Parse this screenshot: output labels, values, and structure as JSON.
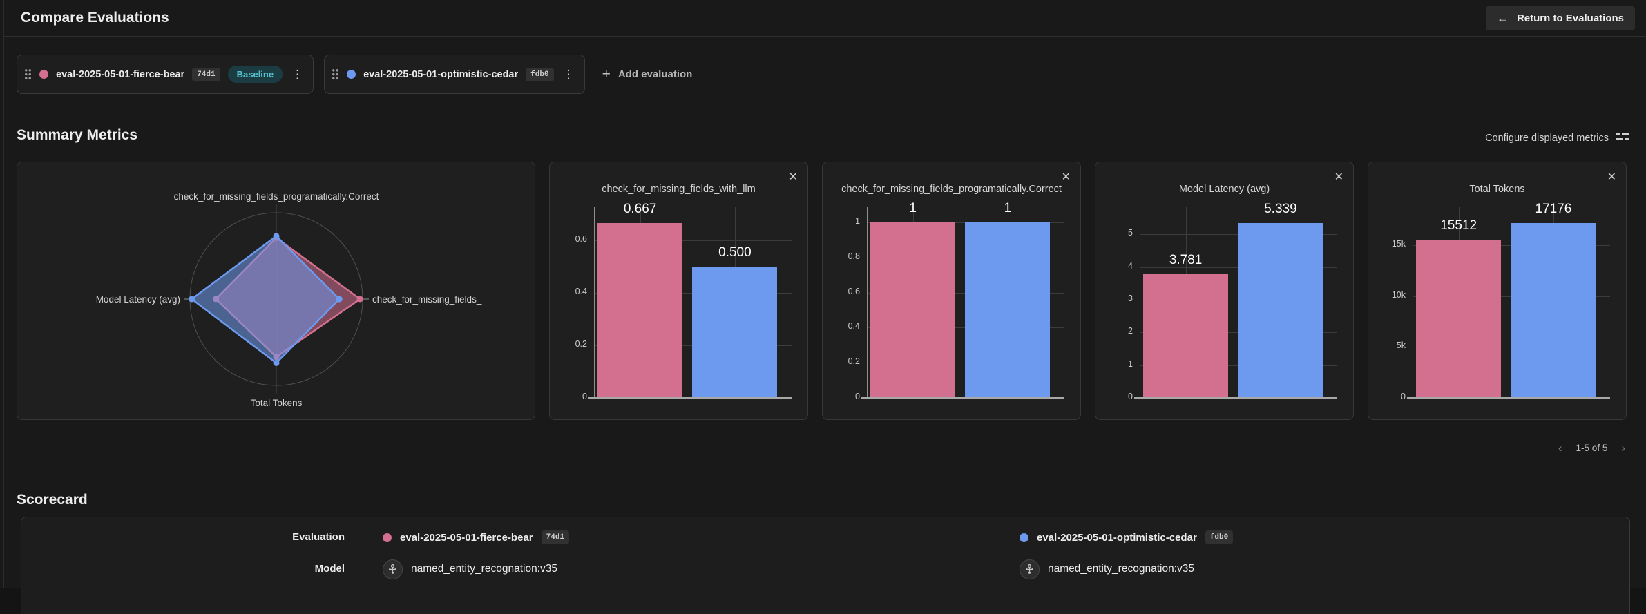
{
  "header": {
    "title": "Compare Evaluations",
    "return_button_label": "Return to Evaluations"
  },
  "evaluations": [
    {
      "name": "eval-2025-05-01-fierce-bear",
      "hash": "74d1",
      "baseline_label": "Baseline",
      "color": "#d4708f"
    },
    {
      "name": "eval-2025-05-01-optimistic-cedar",
      "hash": "fdb0",
      "color": "#6d9aee"
    }
  ],
  "add_evaluation_label": "Add evaluation",
  "summary": {
    "title": "Summary Metrics",
    "configure_label": "Configure displayed metrics",
    "pagination": "1-5 of 5"
  },
  "scorecard": {
    "title": "Scorecard",
    "row_labels": {
      "evaluation": "Evaluation",
      "model": "Model"
    },
    "columns": [
      {
        "evaluation": "eval-2025-05-01-fierce-bear",
        "hash": "74d1",
        "model": "named_entity_recognation:v35",
        "color": "#d4708f"
      },
      {
        "evaluation": "eval-2025-05-01-optimistic-cedar",
        "hash": "fdb0",
        "model": "named_entity_recognation:v35",
        "color": "#6d9aee"
      }
    ]
  },
  "icons": {
    "back_arrow": "←",
    "plus": "+",
    "kebab": "⋮",
    "close": "✕",
    "chevron_left": "‹",
    "chevron_right": "›"
  },
  "colors": {
    "pink_series": "#d4708f",
    "blue_series": "#6d9aee",
    "baseline_badge_bg": "#1a3c42",
    "baseline_badge_text": "#58c5d2",
    "card_bg": "#1f1f1f",
    "page_bg": "#191919",
    "gridline": "#3c3c3c",
    "axis": "#a8a8a8"
  },
  "chart_data": [
    {
      "type": "radar",
      "axes": [
        "check_for_missing_fields_programatically.Correct",
        "check_for_missing_fields_",
        "Total Tokens",
        "Model Latency (avg)"
      ],
      "axis_order": [
        "top",
        "right",
        "bottom",
        "left"
      ],
      "series": [
        {
          "name": "eval-2025-05-01-fierce-bear",
          "color": "#d4708f",
          "values_norm": [
            0.71,
            0.97,
            0.67,
            0.7
          ],
          "raw_values": [
            1,
            0.667,
            15512,
            3.781
          ]
        },
        {
          "name": "eval-2025-05-01-optimistic-cedar",
          "color": "#6d9aee",
          "values_norm": [
            0.73,
            0.73,
            0.74,
            0.98
          ],
          "raw_values": [
            1,
            0.5,
            17176,
            5.339
          ]
        }
      ]
    },
    {
      "type": "bar",
      "title": "check_for_missing_fields_with_llm",
      "series": [
        {
          "name": "eval-2025-05-01-fierce-bear",
          "color": "#d4708f",
          "value": 0.667,
          "label": "0.667"
        },
        {
          "name": "eval-2025-05-01-optimistic-cedar",
          "color": "#6d9aee",
          "value": 0.5,
          "label": "0.500"
        }
      ],
      "yticks": [
        0,
        0.2,
        0.4,
        0.6
      ],
      "ytick_labels": [
        "0",
        "0.2",
        "0.4",
        "0.6"
      ],
      "ylim": [
        0,
        0.73
      ]
    },
    {
      "type": "bar",
      "title": "check_for_missing_fields_programatically.Correct",
      "series": [
        {
          "name": "eval-2025-05-01-fierce-bear",
          "color": "#d4708f",
          "value": 1,
          "label": "1"
        },
        {
          "name": "eval-2025-05-01-optimistic-cedar",
          "color": "#6d9aee",
          "value": 1,
          "label": "1"
        }
      ],
      "yticks": [
        0,
        0.2,
        0.4,
        0.6,
        0.8,
        1
      ],
      "ytick_labels": [
        "0",
        "0.2",
        "0.4",
        "0.6",
        "0.8",
        "1"
      ],
      "ylim": [
        0,
        1.09
      ]
    },
    {
      "type": "bar",
      "title": "Model Latency (avg)",
      "series": [
        {
          "name": "eval-2025-05-01-fierce-bear",
          "color": "#d4708f",
          "value": 3.781,
          "label": "3.781"
        },
        {
          "name": "eval-2025-05-01-optimistic-cedar",
          "color": "#6d9aee",
          "value": 5.339,
          "label": "5.339"
        }
      ],
      "yticks": [
        0,
        1,
        2,
        3,
        4,
        5
      ],
      "ytick_labels": [
        "0",
        "1",
        "2",
        "3",
        "4",
        "5"
      ],
      "ylim": [
        0,
        5.85
      ]
    },
    {
      "type": "bar",
      "title": "Total Tokens",
      "series": [
        {
          "name": "eval-2025-05-01-fierce-bear",
          "color": "#d4708f",
          "value": 15512,
          "label": "15512"
        },
        {
          "name": "eval-2025-05-01-optimistic-cedar",
          "color": "#6d9aee",
          "value": 17176,
          "label": "17176"
        }
      ],
      "yticks": [
        0,
        5000,
        10000,
        15000
      ],
      "ytick_labels": [
        "0",
        "5k",
        "10k",
        "15k"
      ],
      "ylim": [
        0,
        18800
      ]
    }
  ]
}
